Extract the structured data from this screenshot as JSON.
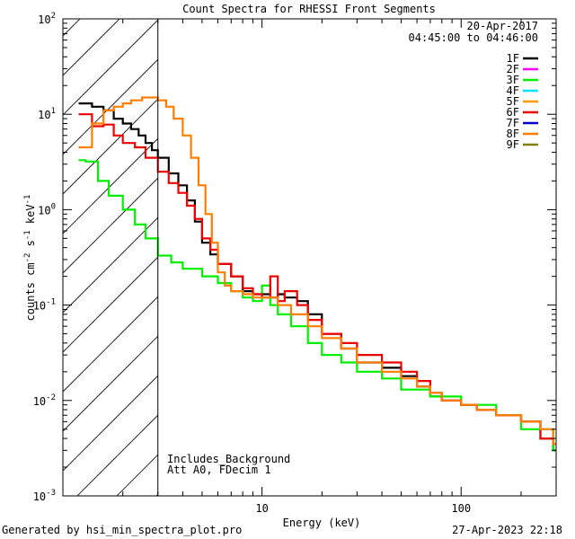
{
  "chart_data": {
    "type": "line",
    "title": "Count Spectra for RHESSI Front Segments",
    "xlabel": "Energy (keV)",
    "ylabel_parts": [
      "counts cm",
      "-2",
      " s",
      "-1",
      " keV",
      "-1"
    ],
    "xscale": "log",
    "yscale": "log",
    "xlim": [
      1.0,
      300.0
    ],
    "ylim": [
      0.001,
      100.0
    ],
    "x_ticks": [
      {
        "value": 10,
        "label": "10"
      },
      {
        "value": 100,
        "label": "100"
      }
    ],
    "y_ticks": [
      {
        "value": 0.001,
        "base": "10",
        "exp": "-3"
      },
      {
        "value": 0.01,
        "base": "10",
        "exp": "-2"
      },
      {
        "value": 0.1,
        "base": "10",
        "exp": "-1"
      },
      {
        "value": 1,
        "base": "10",
        "exp": "0"
      },
      {
        "value": 10,
        "base": "10",
        "exp": "1"
      },
      {
        "value": 100,
        "base": "10",
        "exp": "2"
      }
    ],
    "attenuator_cutoff_keV": 3.0,
    "legend": {
      "date": "20-Apr-2017",
      "time_range": "04:45:00 to 04:46:00",
      "entries": [
        {
          "label": "1F",
          "color": "#000000"
        },
        {
          "label": "2F",
          "color": "#ff00ff"
        },
        {
          "label": "3F",
          "color": "#00ee00"
        },
        {
          "label": "4F",
          "color": "#00e5ff"
        },
        {
          "label": "5F",
          "color": "#ff9900"
        },
        {
          "label": "6F",
          "color": "#ee0000"
        },
        {
          "label": "7F",
          "color": "#0000cc"
        },
        {
          "label": "8F",
          "color": "#ff7f00"
        },
        {
          "label": "9F",
          "color": "#808000"
        }
      ]
    },
    "annotations": [
      "Includes_Background",
      "Att A0, FDecim 1"
    ],
    "series": [
      {
        "name": "1F",
        "color": "#000000",
        "x": [
          1.2,
          1.4,
          1.6,
          1.8,
          2.0,
          2.2,
          2.4,
          2.6,
          2.8,
          3.0,
          3.4,
          3.8,
          4.2,
          4.6,
          5.0,
          5.5,
          6.0,
          7.0,
          8.0,
          9.0,
          10.0,
          11.0,
          12.0,
          13.0,
          15.0,
          17.0,
          20.0,
          25.0,
          30.0,
          40.0,
          50.0,
          60.0,
          70.0,
          80.0,
          100.0,
          120.0,
          150.0,
          200.0,
          250.0,
          290.0
        ],
        "y": [
          13.0,
          12.0,
          11.0,
          9.0,
          8.0,
          7.0,
          6.0,
          5.0,
          4.2,
          3.5,
          2.4,
          1.8,
          1.25,
          0.75,
          0.45,
          0.34,
          0.27,
          0.2,
          0.14,
          0.13,
          0.13,
          0.12,
          0.13,
          0.12,
          0.11,
          0.08,
          0.05,
          0.035,
          0.025,
          0.022,
          0.018,
          0.014,
          0.011,
          0.01,
          0.009,
          0.008,
          0.007,
          0.006,
          0.004,
          0.003
        ]
      },
      {
        "name": "3F",
        "color": "#00ee00",
        "x": [
          1.2,
          1.3,
          1.5,
          1.7,
          2.0,
          2.3,
          2.6,
          3.0,
          3.5,
          4.0,
          5.0,
          6.0,
          7.0,
          8.0,
          9.0,
          10.0,
          11.0,
          12.0,
          14.0,
          17.0,
          20.0,
          25.0,
          30.0,
          40.0,
          50.0,
          70.0,
          100.0,
          150.0,
          200.0,
          290.0
        ],
        "y": [
          3.3,
          3.2,
          2.0,
          1.4,
          1.0,
          0.7,
          0.5,
          0.33,
          0.28,
          0.24,
          0.2,
          0.17,
          0.14,
          0.12,
          0.11,
          0.16,
          0.1,
          0.08,
          0.06,
          0.04,
          0.03,
          0.025,
          0.02,
          0.017,
          0.013,
          0.011,
          0.009,
          0.007,
          0.005,
          0.003
        ]
      },
      {
        "name": "6F",
        "color": "#ee0000",
        "x": [
          1.2,
          1.4,
          1.6,
          1.8,
          2.0,
          2.3,
          2.6,
          3.0,
          3.4,
          3.8,
          4.2,
          4.6,
          5.0,
          5.5,
          6.0,
          7.0,
          8.0,
          9.0,
          10.0,
          11.0,
          12.0,
          13.0,
          15.0,
          17.0,
          20.0,
          25.0,
          30.0,
          40.0,
          50.0,
          60.0,
          70.0,
          80.0,
          100.0,
          120.0,
          150.0,
          200.0,
          250.0,
          290.0
        ],
        "y": [
          10.0,
          7.5,
          7.8,
          6.0,
          5.0,
          4.5,
          3.5,
          2.5,
          1.9,
          1.5,
          1.1,
          0.8,
          0.5,
          0.38,
          0.27,
          0.2,
          0.15,
          0.13,
          0.12,
          0.2,
          0.11,
          0.14,
          0.1,
          0.07,
          0.05,
          0.04,
          0.03,
          0.025,
          0.02,
          0.016,
          0.012,
          0.01,
          0.009,
          0.008,
          0.007,
          0.006,
          0.004,
          0.0035
        ]
      },
      {
        "name": "8F",
        "color": "#ff7f00",
        "x": [
          1.2,
          1.4,
          1.6,
          1.8,
          2.0,
          2.2,
          2.5,
          2.8,
          3.0,
          3.3,
          3.6,
          4.0,
          4.4,
          4.8,
          5.2,
          5.6,
          6.0,
          6.5,
          7.0,
          8.0,
          9.0,
          10.0,
          11.0,
          12.0,
          14.0,
          17.0,
          20.0,
          25.0,
          30.0,
          40.0,
          50.0,
          60.0,
          70.0,
          80.0,
          100.0,
          120.0,
          150.0,
          200.0,
          250.0,
          290.0
        ],
        "y": [
          4.5,
          8.0,
          11.0,
          12.0,
          13.0,
          14.0,
          15.0,
          15.0,
          14.0,
          12.0,
          9.0,
          6.0,
          3.5,
          1.8,
          0.9,
          0.45,
          0.22,
          0.16,
          0.14,
          0.13,
          0.12,
          0.12,
          0.12,
          0.1,
          0.08,
          0.06,
          0.045,
          0.035,
          0.025,
          0.02,
          0.017,
          0.014,
          0.012,
          0.01,
          0.009,
          0.008,
          0.007,
          0.006,
          0.005,
          0.0035
        ]
      }
    ]
  },
  "footer": {
    "left": "Generated by hsi_min_spectra_plot.pro",
    "right": "27-Apr-2023 22:18"
  },
  "colors": {
    "background": "#ffffff",
    "axes": "#000000"
  }
}
